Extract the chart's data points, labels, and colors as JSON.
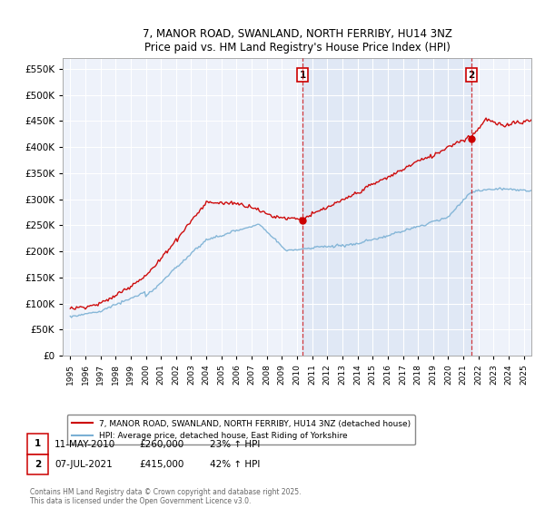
{
  "title": "7, MANOR ROAD, SWANLAND, NORTH FERRIBY, HU14 3NZ",
  "subtitle": "Price paid vs. HM Land Registry's House Price Index (HPI)",
  "legend_line1": "7, MANOR ROAD, SWANLAND, NORTH FERRIBY, HU14 3NZ (detached house)",
  "legend_line2": "HPI: Average price, detached house, East Riding of Yorkshire",
  "marker1_date": "11-MAY-2010",
  "marker1_price": 260000,
  "marker1_pct": "23% ↑ HPI",
  "marker1_x": 2010.36,
  "marker2_date": "07-JUL-2021",
  "marker2_price": 415000,
  "marker2_pct": "42% ↑ HPI",
  "marker2_x": 2021.52,
  "copyright": "Contains HM Land Registry data © Crown copyright and database right 2025.\nThis data is licensed under the Open Government Licence v3.0.",
  "line_color_red": "#cc0000",
  "line_color_blue": "#7ab0d4",
  "shade_color": "#ddeeff",
  "marker_color_red": "#cc0000",
  "bg_color": "#eef2fa",
  "ylim": [
    0,
    570000
  ],
  "xlim": [
    1994.5,
    2025.5
  ],
  "yticks": [
    0,
    50000,
    100000,
    150000,
    200000,
    250000,
    300000,
    350000,
    400000,
    450000,
    500000,
    550000
  ]
}
